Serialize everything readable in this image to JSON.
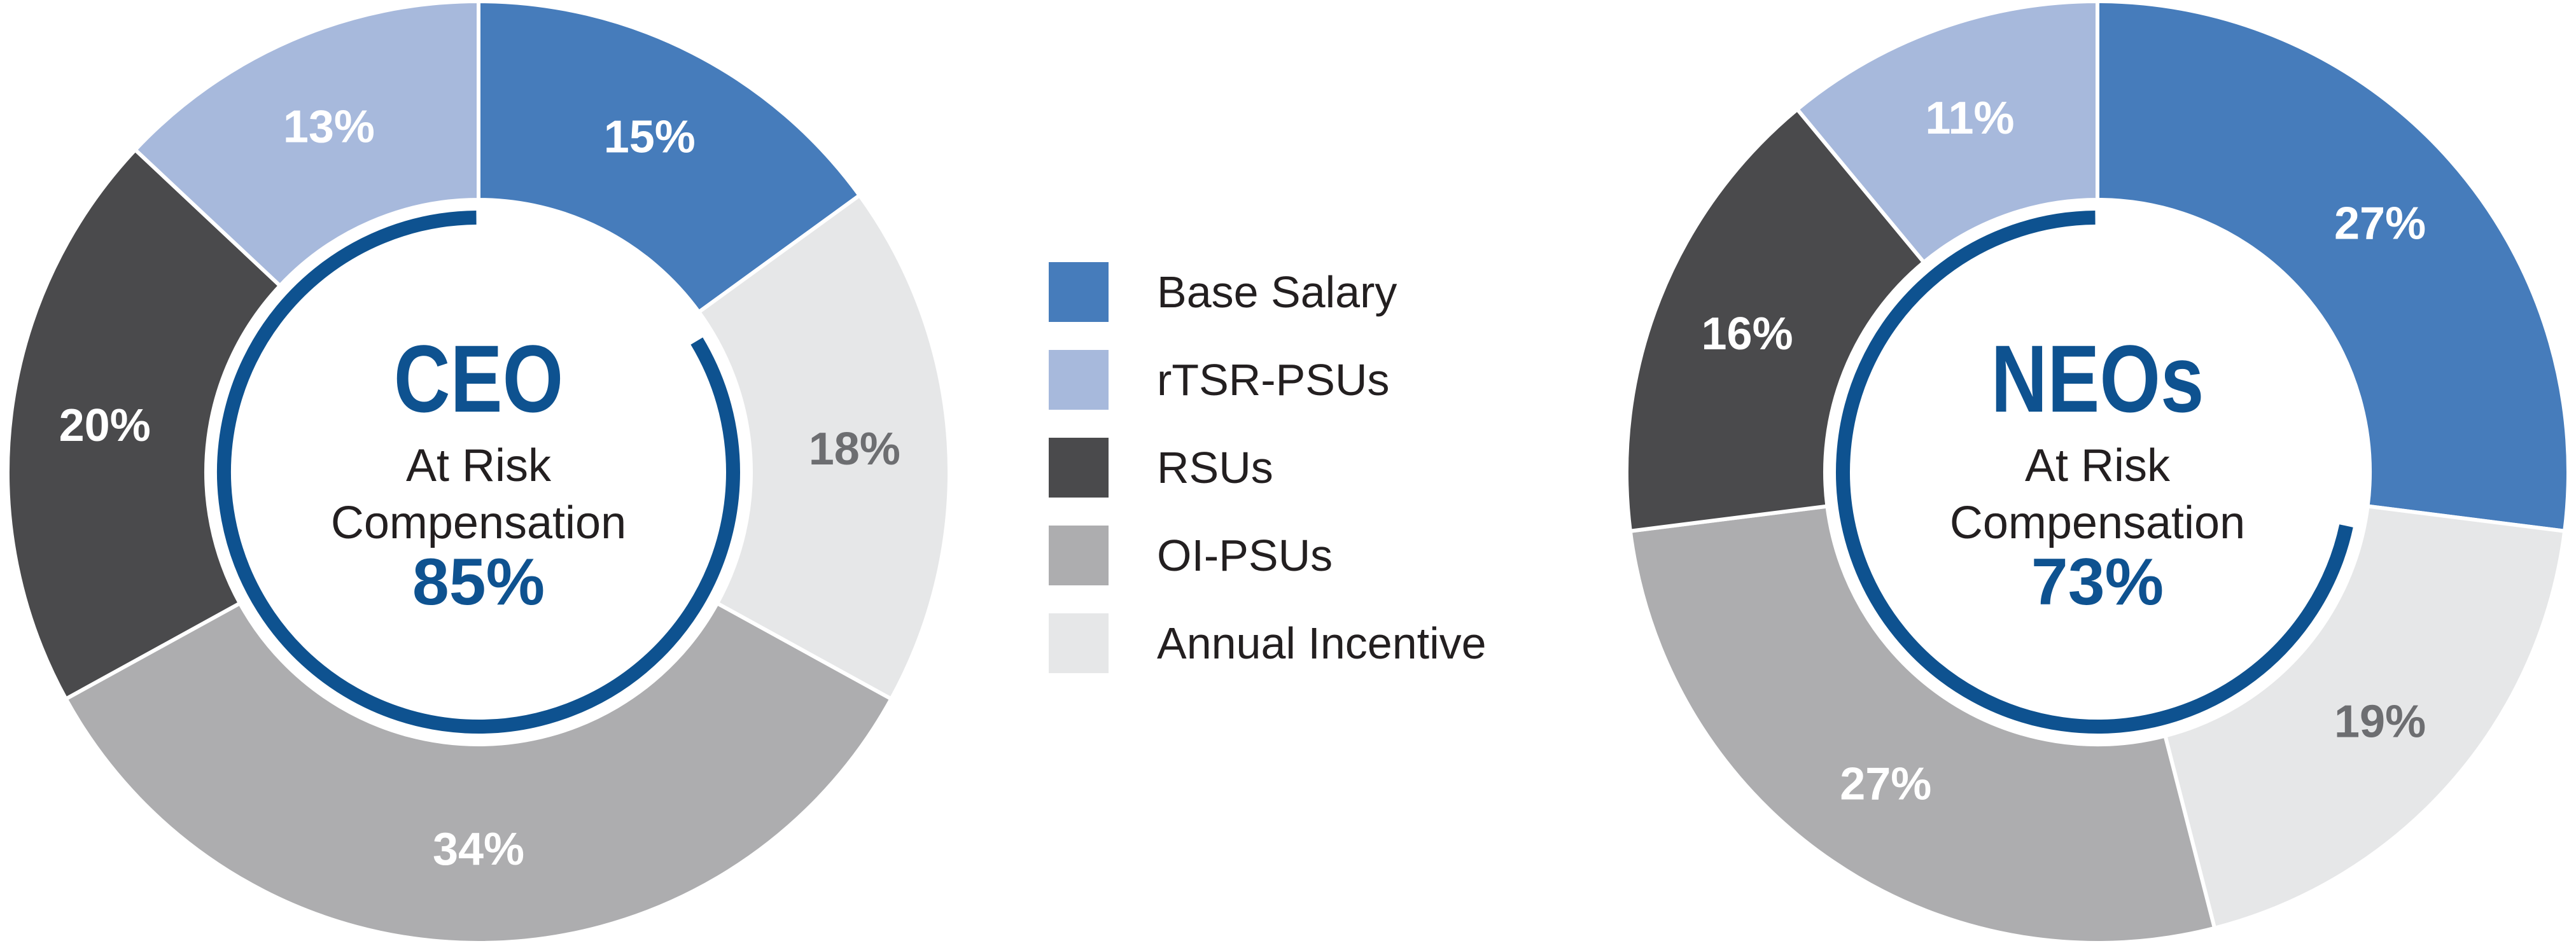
{
  "colors": {
    "base_salary": "#467cbb",
    "rtsr_psus": "#a7b9dc",
    "rsus": "#4a4a4c",
    "oi_psus": "#adadaf",
    "annual_incentive": "#e6e7e8",
    "accent_arc": "#0e5290",
    "title_text": "#0e5290",
    "label_light": "#ffffff",
    "label_dark": "#6d6e71",
    "body_text": "#231f20"
  },
  "legend": {
    "items": [
      {
        "label": "Base Salary",
        "color": "#467cbb"
      },
      {
        "label": "rTSR-PSUs",
        "color": "#a7b9dc"
      },
      {
        "label": "RSUs",
        "color": "#4a4a4c"
      },
      {
        "label": "OI-PSUs",
        "color": "#adadaf"
      },
      {
        "label": "Annual Incentive",
        "color": "#e6e7e8"
      }
    ]
  },
  "chart_data": [
    {
      "type": "pie",
      "variant": "donut",
      "title": "CEO",
      "center_text": {
        "line1": "At Risk",
        "line2": "Compensation",
        "value": "85%"
      },
      "at_risk_percent": 85,
      "slices": [
        {
          "category": "Base Salary",
          "value": 15,
          "label": "15%"
        },
        {
          "category": "Annual Incentive",
          "value": 18,
          "label": "18%"
        },
        {
          "category": "OI-PSUs",
          "value": 34,
          "label": "34%"
        },
        {
          "category": "RSUs",
          "value": 20,
          "label": "20%"
        },
        {
          "category": "rTSR-PSUs",
          "value": 13,
          "label": "13%"
        }
      ]
    },
    {
      "type": "pie",
      "variant": "donut",
      "title": "NEOs",
      "center_text": {
        "line1": "At Risk",
        "line2": "Compensation",
        "value": "73%"
      },
      "at_risk_percent": 73,
      "slices": [
        {
          "category": "Base Salary",
          "value": 27,
          "label": "27%"
        },
        {
          "category": "Annual Incentive",
          "value": 19,
          "label": "19%"
        },
        {
          "category": "OI-PSUs",
          "value": 27,
          "label": "27%"
        },
        {
          "category": "RSUs",
          "value": 16,
          "label": "16%"
        },
        {
          "category": "rTSR-PSUs",
          "value": 11,
          "label": "11%"
        }
      ]
    }
  ]
}
